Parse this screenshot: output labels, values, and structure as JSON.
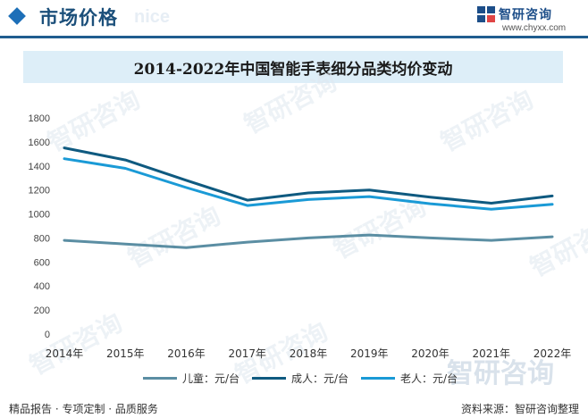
{
  "header": {
    "title": "市场价格",
    "ghost_word": "nice",
    "brand_name": "智研咨询",
    "brand_url": "www.chyxx.com",
    "accent_color": "#1d6fb8"
  },
  "chart_data": {
    "type": "line",
    "title": "2014-2022年中国智能手表细分品类均价变动",
    "xlabel": "",
    "ylabel": "",
    "categories": [
      "2014年",
      "2015年",
      "2016年",
      "2017年",
      "2018年",
      "2019年",
      "2020年",
      "2021年",
      "2022年"
    ],
    "ylim": [
      0,
      1800
    ],
    "yticks": [
      0,
      200,
      400,
      600,
      800,
      1000,
      1200,
      1400,
      1600,
      1800
    ],
    "grid": false,
    "legend_position": "bottom",
    "series": [
      {
        "name": "儿童：元/台",
        "color": "#5b8ea3",
        "values": [
          780,
          750,
          720,
          765,
          800,
          825,
          800,
          780,
          810
        ]
      },
      {
        "name": "成人：元/台",
        "color": "#0f5a80",
        "values": [
          1550,
          1450,
          1280,
          1115,
          1175,
          1200,
          1140,
          1090,
          1150
        ]
      },
      {
        "name": "老人：元/台",
        "color": "#1a9ad6",
        "values": [
          1460,
          1380,
          1220,
          1070,
          1120,
          1145,
          1085,
          1040,
          1080
        ]
      }
    ]
  },
  "footer": {
    "left": "精品报告 · 专项定制 · 品质服务",
    "right": "资料来源：智研咨询整理",
    "watermark": "智研咨询"
  }
}
